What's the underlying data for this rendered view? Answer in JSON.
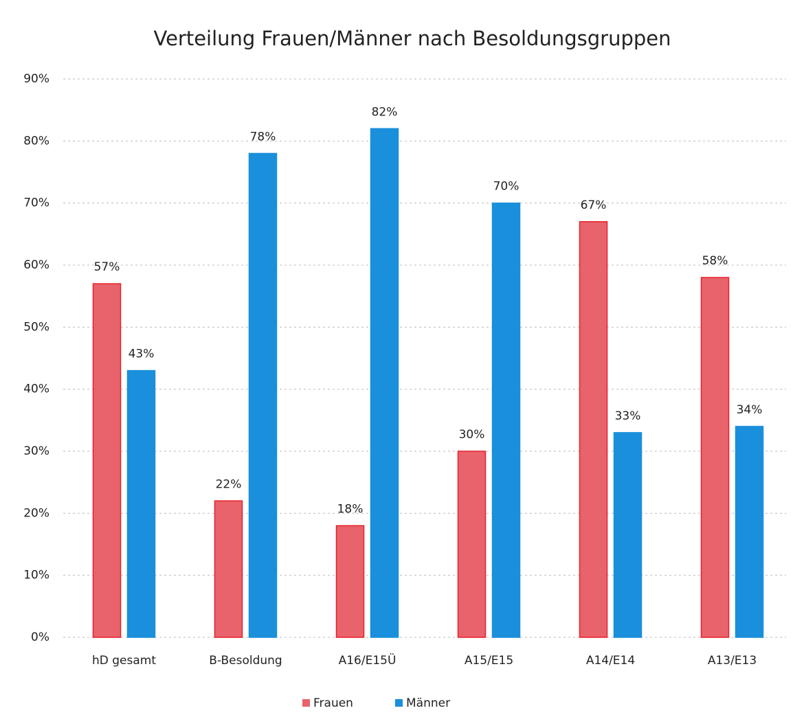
{
  "chart_data": {
    "type": "bar",
    "title": "Verteilung Frauen/Männer nach Besoldungsgruppen",
    "categories": [
      "hD gesamt",
      "B-Besoldung",
      "A16/E15Ü",
      "A15/E15",
      "A14/E14",
      "A13/E13"
    ],
    "series": [
      {
        "name": "Frauen",
        "color": "#e8636b",
        "values": [
          57,
          22,
          18,
          30,
          67,
          58
        ],
        "value_labels": [
          "57%",
          "22%",
          "18%",
          "30%",
          "67%",
          "58%"
        ]
      },
      {
        "name": "Männer",
        "color": "#1a8fdb",
        "values": [
          43,
          78,
          82,
          70,
          33,
          34
        ],
        "value_labels": [
          "43%",
          "78%",
          "82%",
          "70%",
          "33%",
          "34%"
        ]
      }
    ],
    "ylim": [
      0,
      90
    ],
    "yticks": [
      {
        "value": 0,
        "label": "0%"
      },
      {
        "value": 10,
        "label": "10%"
      },
      {
        "value": 20,
        "label": "20%"
      },
      {
        "value": 30,
        "label": "30%"
      },
      {
        "value": 40,
        "label": "40%"
      },
      {
        "value": 50,
        "label": "50%"
      },
      {
        "value": 60,
        "label": "60%"
      },
      {
        "value": 70,
        "label": "70%"
      },
      {
        "value": 80,
        "label": "80%"
      },
      {
        "value": 90,
        "label": "90%"
      }
    ],
    "grid": true,
    "legend": "bottom"
  }
}
